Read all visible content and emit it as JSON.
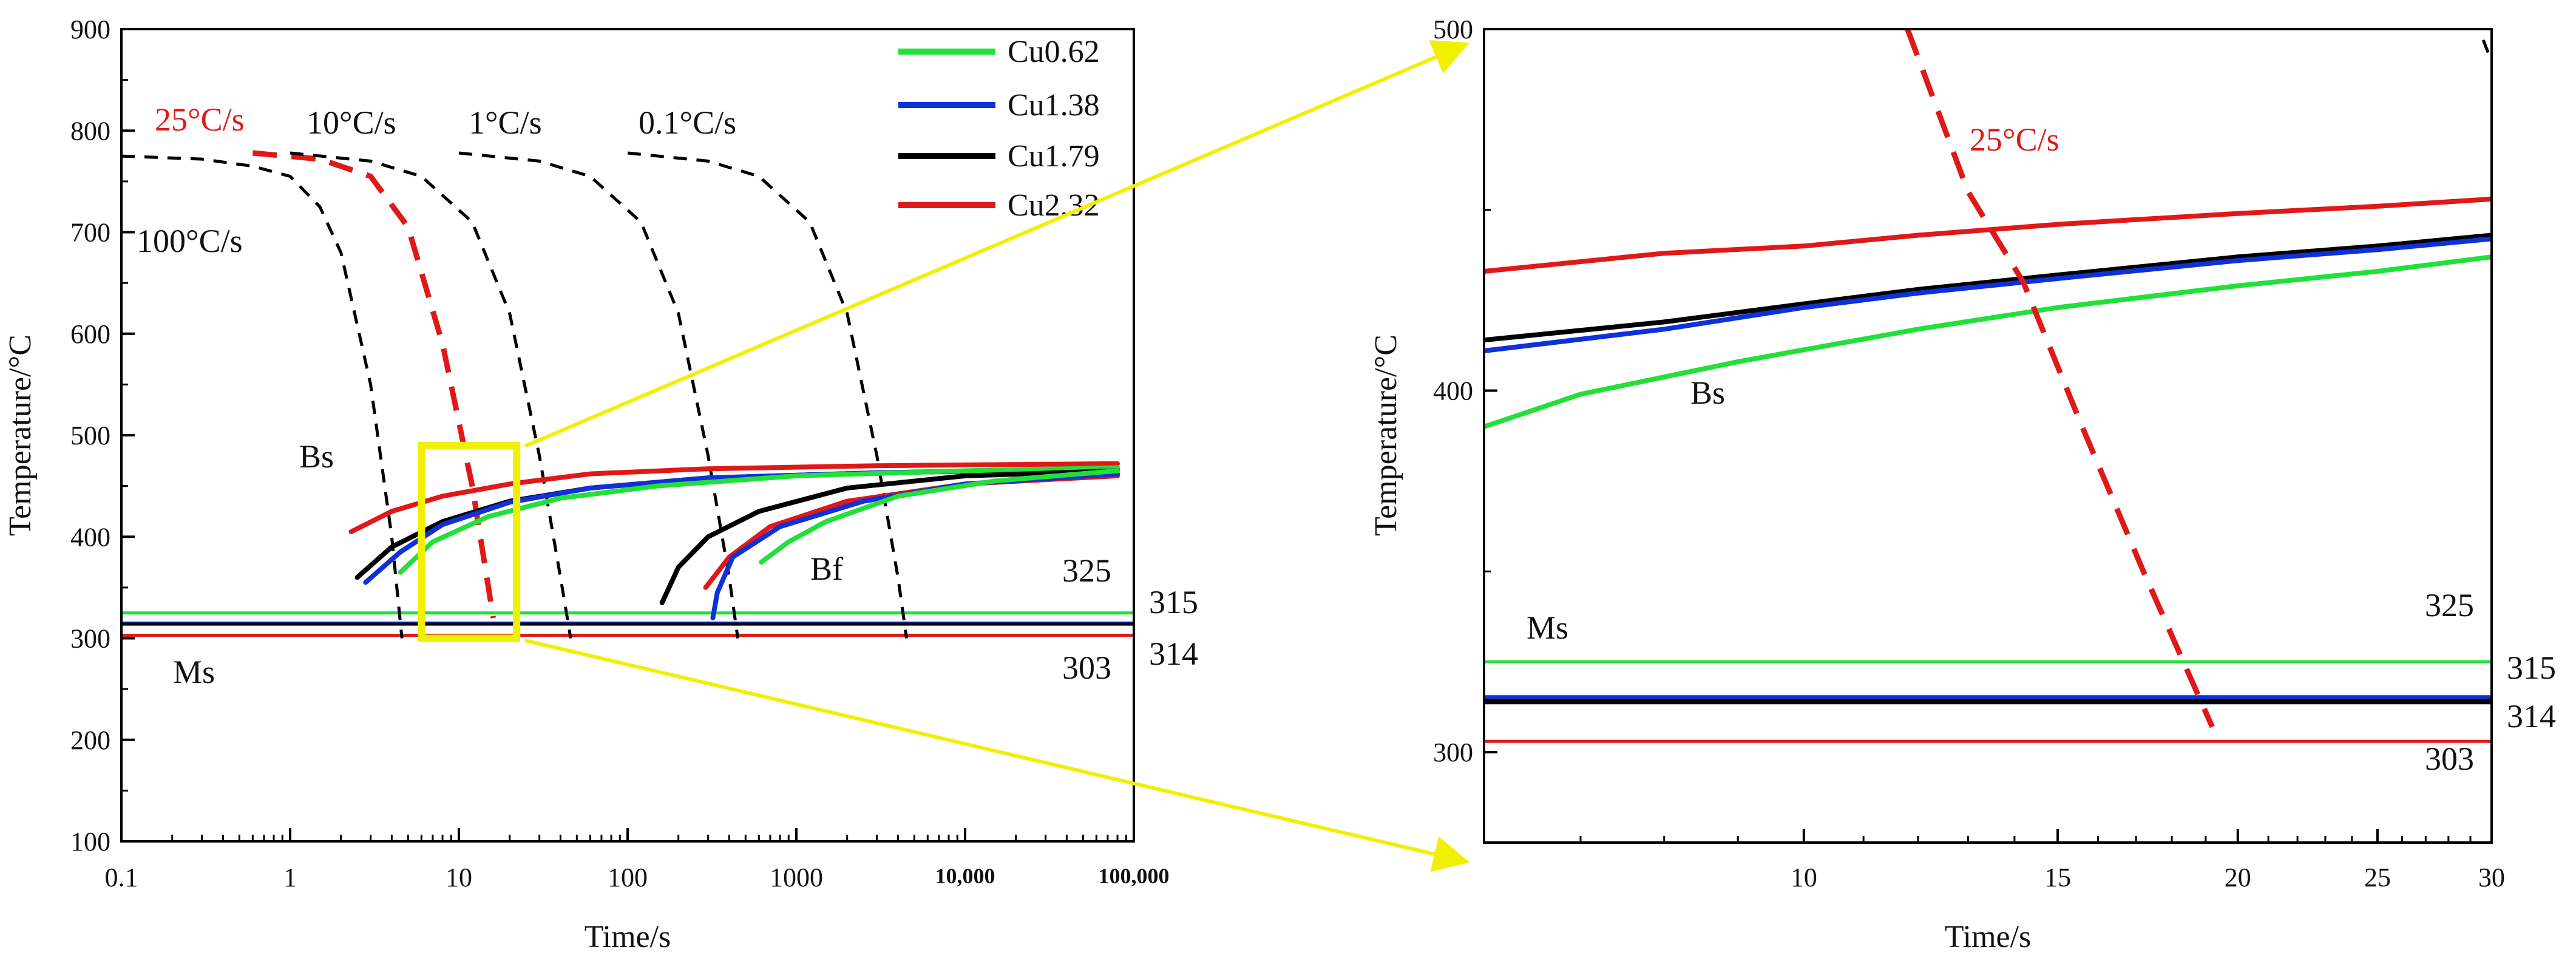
{
  "chart_data": [
    {
      "type": "line",
      "title": "",
      "xlabel": "Time/s",
      "ylabel": "Temperature/°C",
      "xscale": "log",
      "xlim": [
        0.1,
        100000
      ],
      "ylim": [
        100,
        900
      ],
      "xticks": [
        "0.1",
        "1",
        "10",
        "100",
        "1000",
        "10,000",
        "100,000"
      ],
      "yticks": [
        "100",
        "200",
        "300",
        "400",
        "500",
        "600",
        "700",
        "800",
        "900"
      ],
      "legend": {
        "position": "top-right",
        "entries": [
          {
            "label": "Cu0.62",
            "color": "#22e03a"
          },
          {
            "label": "Cu1.38",
            "color": "#1030d8"
          },
          {
            "label": "Cu1.79",
            "color": "#000000"
          },
          {
            "label": "Cu2.32",
            "color": "#e01818"
          }
        ]
      },
      "cooling_curves": [
        {
          "name": "100°C/s",
          "color": "#000000",
          "dashed": true,
          "points": [
            [
              0.1,
              775
            ],
            [
              0.3,
              772
            ],
            [
              0.6,
              765
            ],
            [
              1.0,
              755
            ],
            [
              1.5,
              725
            ],
            [
              2.0,
              680
            ],
            [
              3.0,
              550
            ],
            [
              4.0,
              400
            ],
            [
              4.6,
              300
            ]
          ]
        },
        {
          "name": "25°C/s",
          "color": "#e01818",
          "dashed": true,
          "points": [
            [
              0.6,
              778
            ],
            [
              1.5,
              772
            ],
            [
              3.0,
              755
            ],
            [
              5.0,
              705
            ],
            [
              8.0,
              590
            ],
            [
              12.0,
              450
            ],
            [
              16.0,
              320
            ]
          ]
        },
        {
          "name": "10°C/s",
          "color": "#000000",
          "dashed": true,
          "points": [
            [
              1.0,
              778
            ],
            [
              3.0,
              770
            ],
            [
              6.0,
              755
            ],
            [
              12.0,
              710
            ],
            [
              20.0,
              620
            ],
            [
              30.0,
              480
            ],
            [
              40.0,
              360
            ],
            [
              46.0,
              300
            ]
          ]
        },
        {
          "name": "1°C/s",
          "color": "#000000",
          "dashed": true,
          "points": [
            [
              10.0,
              778
            ],
            [
              30.0,
              770
            ],
            [
              60.0,
              755
            ],
            [
              120.0,
              710
            ],
            [
              200.0,
              620
            ],
            [
              300.0,
              480
            ],
            [
              400.0,
              360
            ],
            [
              450.0,
              300
            ]
          ]
        },
        {
          "name": "0.1°C/s",
          "color": "#000000",
          "dashed": true,
          "points": [
            [
              100.0,
              778
            ],
            [
              300.0,
              770
            ],
            [
              600.0,
              755
            ],
            [
              1200.0,
              710
            ],
            [
              2000.0,
              620
            ],
            [
              3000.0,
              480
            ],
            [
              4000.0,
              360
            ],
            [
              4500.0,
              300
            ]
          ]
        }
      ],
      "transformation_curves": [
        {
          "series": "Cu2.32",
          "kind": "Bs",
          "color": "#e01818",
          "points": [
            [
              2.3,
              405
            ],
            [
              4,
              425
            ],
            [
              8,
              440
            ],
            [
              20,
              452
            ],
            [
              60,
              462
            ],
            [
              300,
              467
            ],
            [
              3000,
              470
            ],
            [
              80000,
              472
            ]
          ]
        },
        {
          "series": "Cu1.79",
          "kind": "Bs",
          "color": "#000000",
          "points": [
            [
              2.5,
              360
            ],
            [
              4,
              390
            ],
            [
              8,
              415
            ],
            [
              20,
              435
            ],
            [
              60,
              448
            ],
            [
              300,
              458
            ],
            [
              3000,
              463
            ],
            [
              80000,
              467
            ]
          ]
        },
        {
          "series": "Cu1.38",
          "kind": "Bs",
          "color": "#1030d8",
          "points": [
            [
              2.8,
              355
            ],
            [
              4.5,
              385
            ],
            [
              8,
              412
            ],
            [
              20,
              434
            ],
            [
              60,
              448
            ],
            [
              300,
              458
            ],
            [
              3000,
              463
            ],
            [
              80000,
              468
            ]
          ]
        },
        {
          "series": "Cu0.62",
          "kind": "Bs",
          "color": "#22e03a",
          "points": [
            [
              4.5,
              365
            ],
            [
              7,
              395
            ],
            [
              15,
              420
            ],
            [
              40,
              438
            ],
            [
              150,
              450
            ],
            [
              1000,
              460
            ],
            [
              10000,
              465
            ],
            [
              80000,
              468
            ]
          ]
        },
        {
          "series": "Cu1.79",
          "kind": "Bf",
          "color": "#000000",
          "points": [
            [
              160,
              335
            ],
            [
              200,
              370
            ],
            [
              300,
              400
            ],
            [
              600,
              425
            ],
            [
              2000,
              448
            ],
            [
              10000,
              460
            ],
            [
              80000,
              465
            ]
          ]
        },
        {
          "series": "Cu2.32",
          "kind": "Bf",
          "color": "#e01818",
          "points": [
            [
              290,
              350
            ],
            [
              400,
              380
            ],
            [
              700,
              410
            ],
            [
              2000,
              435
            ],
            [
              10000,
              452
            ],
            [
              80000,
              460
            ]
          ]
        },
        {
          "series": "Cu1.38",
          "kind": "Bf",
          "color": "#1030d8",
          "points": [
            [
              320,
              320
            ],
            [
              340,
              345
            ],
            [
              420,
              380
            ],
            [
              800,
              410
            ],
            [
              2500,
              435
            ],
            [
              10000,
              452
            ],
            [
              80000,
              462
            ]
          ]
        },
        {
          "series": "Cu0.62",
          "kind": "Bf",
          "color": "#22e03a",
          "points": [
            [
              620,
              375
            ],
            [
              900,
              395
            ],
            [
              1500,
              415
            ],
            [
              4000,
              440
            ],
            [
              15000,
              455
            ],
            [
              80000,
              465
            ]
          ]
        }
      ],
      "ms_lines": [
        {
          "series": "Cu0.62",
          "value": 325,
          "color": "#22e03a",
          "label": "325"
        },
        {
          "series": "Cu1.38",
          "value": 315,
          "color": "#1030d8",
          "label": "315"
        },
        {
          "series": "Cu1.79",
          "value": 314,
          "color": "#000000",
          "label": "314"
        },
        {
          "series": "Cu2.32",
          "value": 303,
          "color": "#e01818",
          "label": "303"
        }
      ],
      "annotations": [
        "100°C/s",
        "25°C/s",
        "10°C/s",
        "1°C/s",
        "0.1°C/s",
        "Bs",
        "Bf",
        "Ms"
      ],
      "zoom_box": {
        "x": [
          6,
          22
        ],
        "y": [
          300,
          490
        ],
        "color": "#f0f000"
      }
    },
    {
      "type": "line",
      "title": "",
      "xlabel": "Time/s",
      "ylabel": "Temperature/°C",
      "xscale": "log",
      "xlim": [
        6,
        30
      ],
      "ylim": [
        275,
        500
      ],
      "xticks": [
        "10",
        "15",
        "20",
        "25",
        "30"
      ],
      "yticks": [
        "300",
        "400",
        "500"
      ],
      "series": [
        {
          "name": "Cu2.32",
          "color": "#e01818",
          "points": [
            [
              6,
              433
            ],
            [
              8,
              438
            ],
            [
              10,
              440
            ],
            [
              12,
              443
            ],
            [
              15,
              446
            ],
            [
              20,
              449
            ],
            [
              25,
              451
            ],
            [
              30,
              453
            ]
          ]
        },
        {
          "name": "Cu1.79",
          "color": "#000000",
          "points": [
            [
              6,
              414
            ],
            [
              8,
              419
            ],
            [
              10,
              424
            ],
            [
              12,
              428
            ],
            [
              15,
              432
            ],
            [
              20,
              437
            ],
            [
              25,
              440
            ],
            [
              30,
              443
            ]
          ]
        },
        {
          "name": "Cu1.38",
          "color": "#1030d8",
          "points": [
            [
              6,
              411
            ],
            [
              8,
              417
            ],
            [
              10,
              423
            ],
            [
              12,
              427
            ],
            [
              15,
              431
            ],
            [
              20,
              436
            ],
            [
              25,
              439
            ],
            [
              30,
              442
            ]
          ]
        },
        {
          "name": "Cu0.62",
          "color": "#22e03a",
          "points": [
            [
              6,
              390
            ],
            [
              7,
              399
            ],
            [
              9,
              408
            ],
            [
              12,
              417
            ],
            [
              15,
              423
            ],
            [
              20,
              429
            ],
            [
              25,
              433
            ],
            [
              30,
              437
            ]
          ]
        }
      ],
      "cooling_curves": [
        {
          "name": "25°C/s",
          "color": "#e01818",
          "dashed": true,
          "points": [
            [
              11.8,
              500
            ],
            [
              13,
              455
            ],
            [
              14.2,
              430
            ],
            [
              15.6,
              390
            ],
            [
              17.2,
              350
            ],
            [
              19.2,
              307
            ]
          ]
        },
        {
          "name": "",
          "color": "#000000",
          "dashed": true,
          "points": [
            [
              29.6,
              497
            ],
            [
              30,
              491
            ]
          ]
        }
      ],
      "ms_lines": [
        {
          "series": "Cu0.62",
          "value": 325,
          "color": "#22e03a",
          "label": "325"
        },
        {
          "series": "Cu1.38",
          "value": 315,
          "color": "#1030d8",
          "label": "315"
        },
        {
          "series": "Cu1.79",
          "value": 314,
          "color": "#000000",
          "label": "314"
        },
        {
          "series": "Cu2.32",
          "value": 303,
          "color": "#e01818",
          "label": "303"
        }
      ],
      "annotations": [
        "25°C/s",
        "Bs",
        "Ms"
      ]
    }
  ]
}
